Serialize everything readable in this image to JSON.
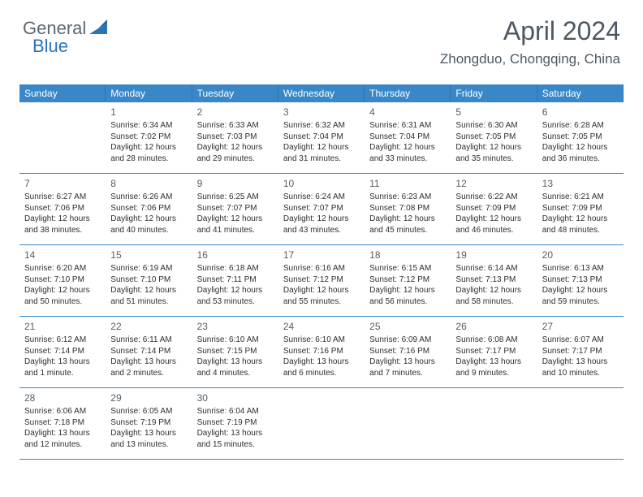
{
  "logo": {
    "part1": "General",
    "part2": "Blue",
    "triangle_color": "#2a74b8"
  },
  "header": {
    "title": "April 2024",
    "location": "Zhongduo, Chongqing, China"
  },
  "colors": {
    "header_bg": "#3a87c8",
    "header_border": "#2a74b8",
    "text": "#2e2e2e",
    "title_text": "#4d5862"
  },
  "days_of_week": [
    "Sunday",
    "Monday",
    "Tuesday",
    "Wednesday",
    "Thursday",
    "Friday",
    "Saturday"
  ],
  "start_offset": 1,
  "days": [
    {
      "n": 1,
      "sr": "6:34 AM",
      "ss": "7:02 PM",
      "dl": "12 hours and 28 minutes."
    },
    {
      "n": 2,
      "sr": "6:33 AM",
      "ss": "7:03 PM",
      "dl": "12 hours and 29 minutes."
    },
    {
      "n": 3,
      "sr": "6:32 AM",
      "ss": "7:04 PM",
      "dl": "12 hours and 31 minutes."
    },
    {
      "n": 4,
      "sr": "6:31 AM",
      "ss": "7:04 PM",
      "dl": "12 hours and 33 minutes."
    },
    {
      "n": 5,
      "sr": "6:30 AM",
      "ss": "7:05 PM",
      "dl": "12 hours and 35 minutes."
    },
    {
      "n": 6,
      "sr": "6:28 AM",
      "ss": "7:05 PM",
      "dl": "12 hours and 36 minutes."
    },
    {
      "n": 7,
      "sr": "6:27 AM",
      "ss": "7:06 PM",
      "dl": "12 hours and 38 minutes."
    },
    {
      "n": 8,
      "sr": "6:26 AM",
      "ss": "7:06 PM",
      "dl": "12 hours and 40 minutes."
    },
    {
      "n": 9,
      "sr": "6:25 AM",
      "ss": "7:07 PM",
      "dl": "12 hours and 41 minutes."
    },
    {
      "n": 10,
      "sr": "6:24 AM",
      "ss": "7:07 PM",
      "dl": "12 hours and 43 minutes."
    },
    {
      "n": 11,
      "sr": "6:23 AM",
      "ss": "7:08 PM",
      "dl": "12 hours and 45 minutes."
    },
    {
      "n": 12,
      "sr": "6:22 AM",
      "ss": "7:09 PM",
      "dl": "12 hours and 46 minutes."
    },
    {
      "n": 13,
      "sr": "6:21 AM",
      "ss": "7:09 PM",
      "dl": "12 hours and 48 minutes."
    },
    {
      "n": 14,
      "sr": "6:20 AM",
      "ss": "7:10 PM",
      "dl": "12 hours and 50 minutes."
    },
    {
      "n": 15,
      "sr": "6:19 AM",
      "ss": "7:10 PM",
      "dl": "12 hours and 51 minutes."
    },
    {
      "n": 16,
      "sr": "6:18 AM",
      "ss": "7:11 PM",
      "dl": "12 hours and 53 minutes."
    },
    {
      "n": 17,
      "sr": "6:16 AM",
      "ss": "7:12 PM",
      "dl": "12 hours and 55 minutes."
    },
    {
      "n": 18,
      "sr": "6:15 AM",
      "ss": "7:12 PM",
      "dl": "12 hours and 56 minutes."
    },
    {
      "n": 19,
      "sr": "6:14 AM",
      "ss": "7:13 PM",
      "dl": "12 hours and 58 minutes."
    },
    {
      "n": 20,
      "sr": "6:13 AM",
      "ss": "7:13 PM",
      "dl": "12 hours and 59 minutes."
    },
    {
      "n": 21,
      "sr": "6:12 AM",
      "ss": "7:14 PM",
      "dl": "13 hours and 1 minute."
    },
    {
      "n": 22,
      "sr": "6:11 AM",
      "ss": "7:14 PM",
      "dl": "13 hours and 2 minutes."
    },
    {
      "n": 23,
      "sr": "6:10 AM",
      "ss": "7:15 PM",
      "dl": "13 hours and 4 minutes."
    },
    {
      "n": 24,
      "sr": "6:10 AM",
      "ss": "7:16 PM",
      "dl": "13 hours and 6 minutes."
    },
    {
      "n": 25,
      "sr": "6:09 AM",
      "ss": "7:16 PM",
      "dl": "13 hours and 7 minutes."
    },
    {
      "n": 26,
      "sr": "6:08 AM",
      "ss": "7:17 PM",
      "dl": "13 hours and 9 minutes."
    },
    {
      "n": 27,
      "sr": "6:07 AM",
      "ss": "7:17 PM",
      "dl": "13 hours and 10 minutes."
    },
    {
      "n": 28,
      "sr": "6:06 AM",
      "ss": "7:18 PM",
      "dl": "13 hours and 12 minutes."
    },
    {
      "n": 29,
      "sr": "6:05 AM",
      "ss": "7:19 PM",
      "dl": "13 hours and 13 minutes."
    },
    {
      "n": 30,
      "sr": "6:04 AM",
      "ss": "7:19 PM",
      "dl": "13 hours and 15 minutes."
    }
  ],
  "labels": {
    "sunrise": "Sunrise:",
    "sunset": "Sunset:",
    "daylight": "Daylight:"
  }
}
